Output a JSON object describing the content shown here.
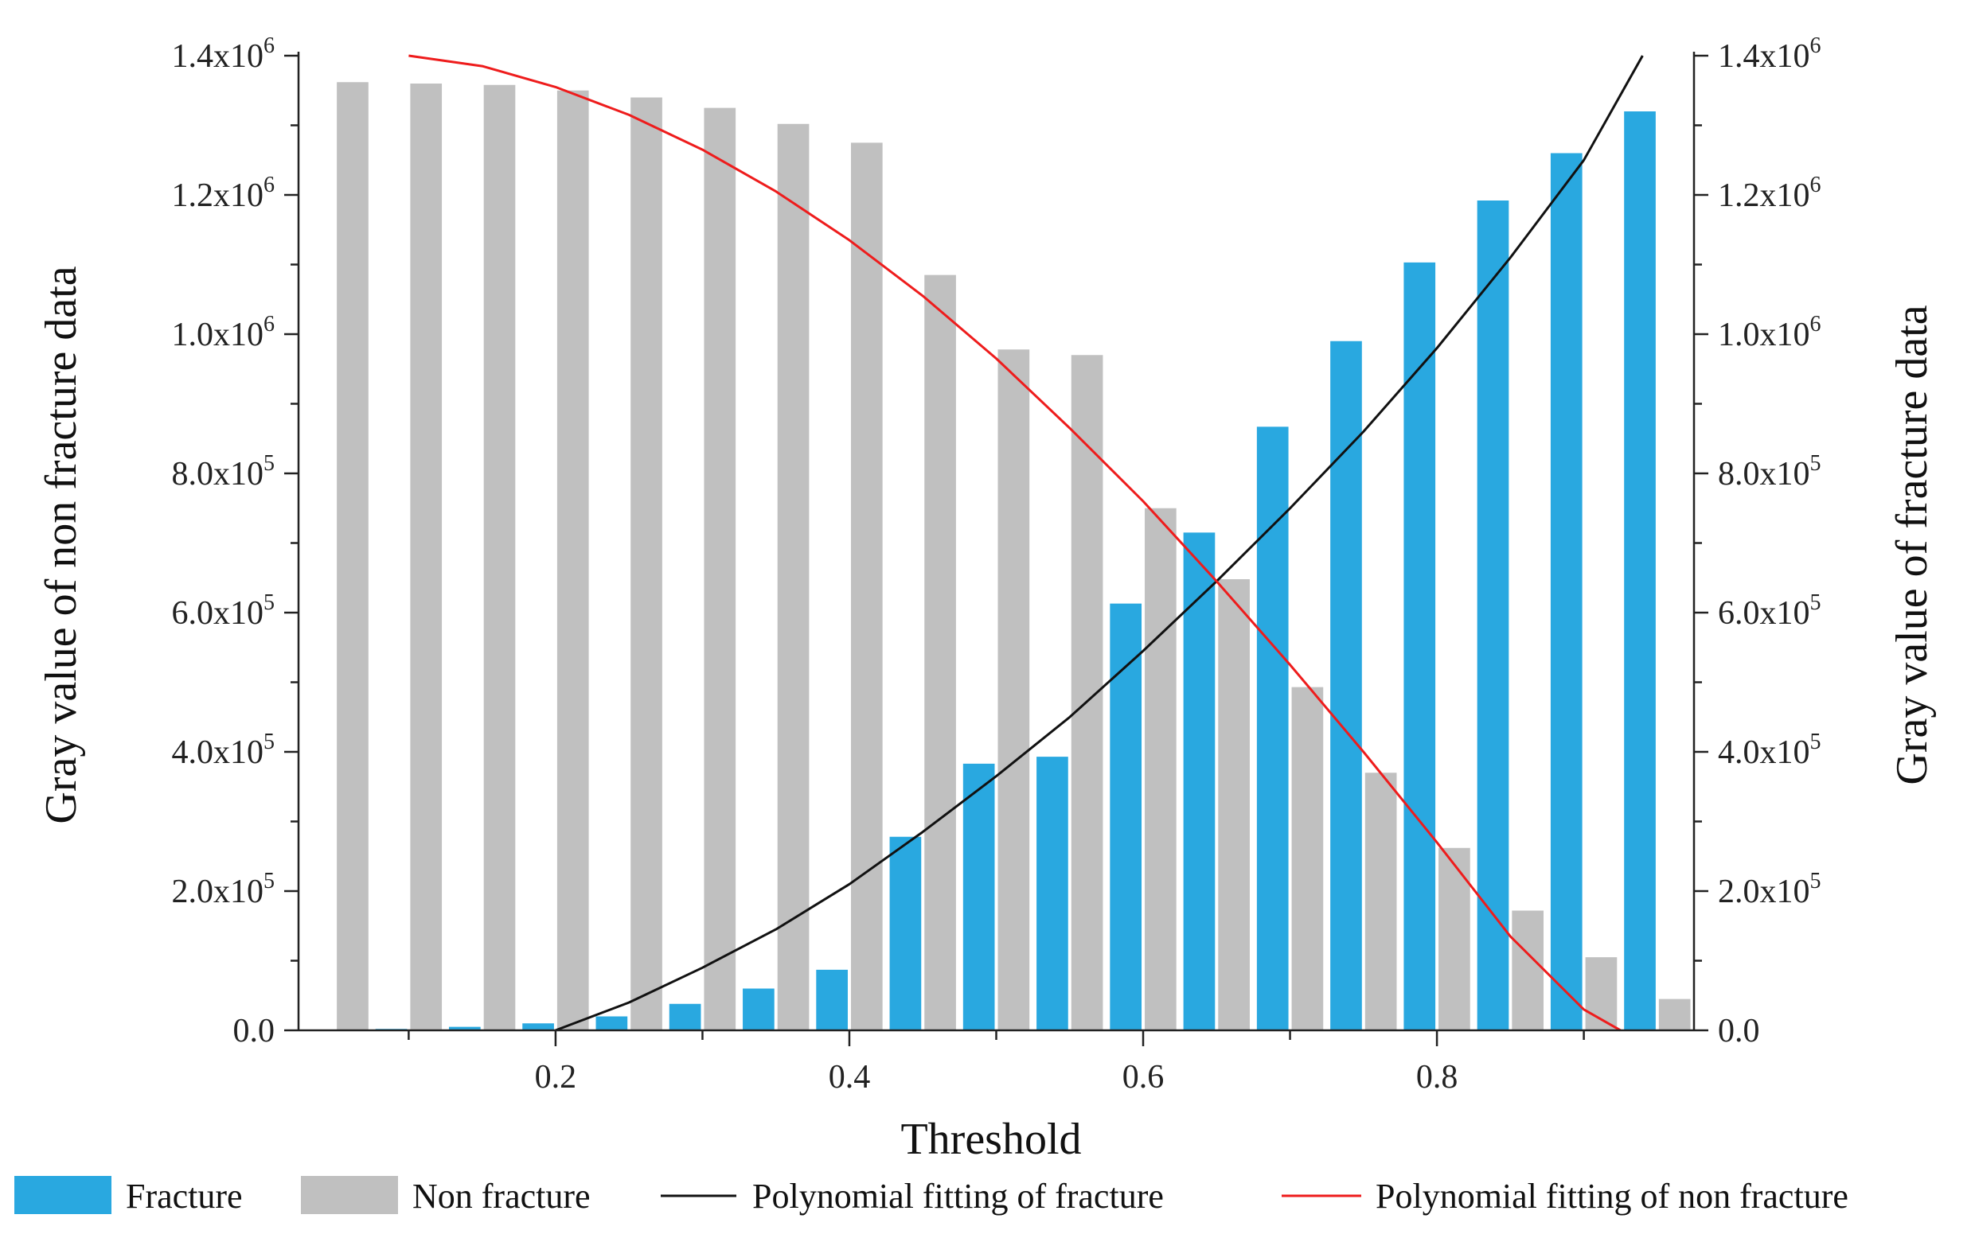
{
  "chart_data": {
    "type": "bar",
    "xlabel": "Threshold",
    "ylabel_left": "Gray value of non fracture data",
    "ylabel_right": "Gray value of fracture data",
    "xlim": [
      0.025,
      0.975
    ],
    "ylim": [
      0,
      1400000
    ],
    "x_ticks": [
      0.2,
      0.4,
      0.6,
      0.8
    ],
    "x_tick_labels": [
      "0.2",
      "0.4",
      "0.6",
      "0.8"
    ],
    "x_minor_ticks": [
      0.1,
      0.3,
      0.5,
      0.7,
      0.9
    ],
    "y_ticks": [
      0,
      200000,
      400000,
      600000,
      800000,
      1000000,
      1200000,
      1400000
    ],
    "y_tick_labels": [
      {
        "base": "0.0",
        "exp": ""
      },
      {
        "base": "2.0x10",
        "exp": "5"
      },
      {
        "base": "4.0x10",
        "exp": "5"
      },
      {
        "base": "6.0x10",
        "exp": "5"
      },
      {
        "base": "8.0x10",
        "exp": "5"
      },
      {
        "base": "1.0x10",
        "exp": "6"
      },
      {
        "base": "1.2x10",
        "exp": "6"
      },
      {
        "base": "1.4x10",
        "exp": "6"
      }
    ],
    "x": [
      0.05,
      0.1,
      0.15,
      0.2,
      0.25,
      0.3,
      0.35,
      0.4,
      0.45,
      0.5,
      0.55,
      0.6,
      0.65,
      0.7,
      0.75,
      0.8,
      0.85,
      0.9,
      0.95
    ],
    "series": [
      {
        "name": "Fracture",
        "type": "bar",
        "color": "#29a8e0",
        "values": [
          0,
          2000,
          5000,
          10000,
          20000,
          38000,
          60000,
          87000,
          278000,
          383000,
          393000,
          613000,
          715000,
          867000,
          990000,
          1103000,
          1192000,
          1260000,
          1320000
        ]
      },
      {
        "name": "Non fracture",
        "type": "bar",
        "color": "#c0c0c0",
        "values": [
          1362000,
          1360000,
          1358000,
          1350000,
          1340000,
          1325000,
          1302000,
          1275000,
          1085000,
          978000,
          970000,
          750000,
          648000,
          493000,
          370000,
          262000,
          172000,
          105000,
          45000
        ]
      },
      {
        "name": "Polynomial fitting of fracture",
        "type": "line",
        "color": "#111111",
        "x": [
          0.2,
          0.25,
          0.3,
          0.35,
          0.4,
          0.45,
          0.5,
          0.55,
          0.6,
          0.65,
          0.7,
          0.75,
          0.8,
          0.85,
          0.9,
          0.94
        ],
        "values": [
          0,
          40000,
          90000,
          145000,
          210000,
          285000,
          365000,
          450000,
          545000,
          645000,
          750000,
          860000,
          980000,
          1110000,
          1250000,
          1400000
        ]
      },
      {
        "name": "Polynomial fitting of non fracture",
        "type": "line",
        "color": "#ee1c1c",
        "x": [
          0.1,
          0.15,
          0.2,
          0.25,
          0.3,
          0.35,
          0.4,
          0.45,
          0.5,
          0.55,
          0.6,
          0.65,
          0.7,
          0.75,
          0.8,
          0.85,
          0.9,
          0.925
        ],
        "values": [
          1400000,
          1385000,
          1355000,
          1315000,
          1265000,
          1205000,
          1135000,
          1055000,
          965000,
          865000,
          760000,
          645000,
          525000,
          400000,
          270000,
          135000,
          30000,
          0
        ]
      }
    ],
    "legend": {
      "position": "bottom",
      "items": [
        {
          "label": "Fracture",
          "kind": "box",
          "color": "#29a8e0"
        },
        {
          "label": "Non fracture",
          "kind": "box",
          "color": "#c0c0c0"
        },
        {
          "label": "Polynomial fitting of fracture",
          "kind": "line",
          "color": "#111111"
        },
        {
          "label": "Polynomial fitting of non fracture",
          "kind": "line",
          "color": "#ee1c1c"
        }
      ]
    },
    "grid": false
  }
}
